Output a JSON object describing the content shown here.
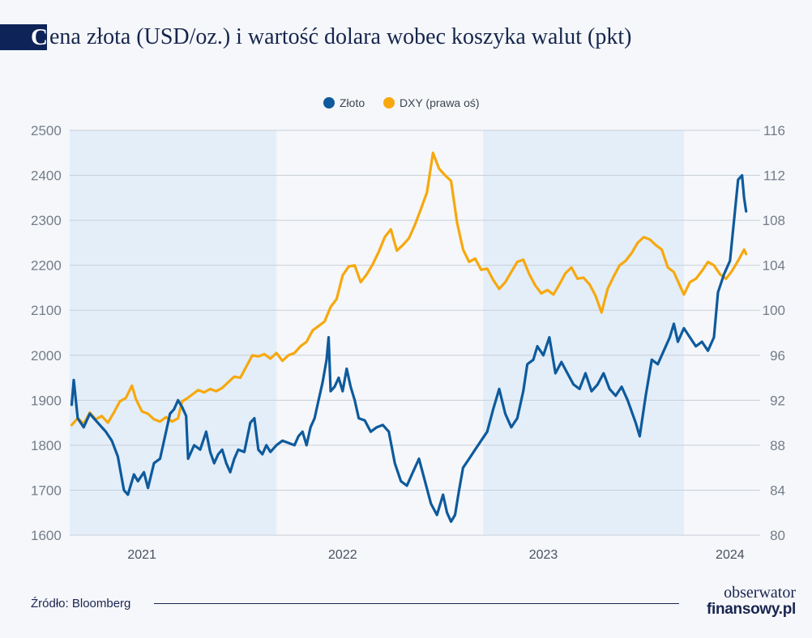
{
  "header": {
    "title_initial": "C",
    "title_rest": "ena złota (USD/oz.) i wartość dolara wobec koszyka walut (pkt)"
  },
  "footer": {
    "source": "Źródło: Bloomberg",
    "logo_top": "obserwator",
    "logo_bottom": "finansowy.pl"
  },
  "colors": {
    "gold": "#0e5a9c",
    "dxy": "#f7a80d",
    "band": "#e3eef9",
    "grid": "#c9cfd8",
    "tick": "#747c88"
  },
  "chart_data": {
    "type": "line",
    "legend": {
      "position": "top-center"
    },
    "x_ticks": [
      "2021",
      "2022",
      "2023",
      "2024"
    ],
    "x_range": [
      2020.88,
      2024.32
    ],
    "shaded_years": [
      [
        2020.88,
        2021.91
      ],
      [
        2022.94,
        2023.94
      ]
    ],
    "y_left": {
      "ticks": [
        1600,
        1700,
        1800,
        1900,
        2000,
        2100,
        2200,
        2300,
        2400,
        2500
      ],
      "range": [
        1600,
        2500
      ]
    },
    "y_right": {
      "ticks": [
        80,
        84,
        88,
        92,
        96,
        100,
        104,
        108,
        112,
        116
      ],
      "range": [
        80,
        116
      ]
    },
    "grid": true,
    "series": [
      {
        "name": "Złoto",
        "axis": "left",
        "points": [
          [
            2020.89,
            1890
          ],
          [
            2020.9,
            1945
          ],
          [
            2020.92,
            1860
          ],
          [
            2020.95,
            1840
          ],
          [
            2020.98,
            1870
          ],
          [
            2021.01,
            1855
          ],
          [
            2021.03,
            1845
          ],
          [
            2021.06,
            1830
          ],
          [
            2021.09,
            1810
          ],
          [
            2021.12,
            1775
          ],
          [
            2021.15,
            1700
          ],
          [
            2021.17,
            1690
          ],
          [
            2021.2,
            1735
          ],
          [
            2021.22,
            1720
          ],
          [
            2021.25,
            1740
          ],
          [
            2021.27,
            1705
          ],
          [
            2021.3,
            1760
          ],
          [
            2021.33,
            1770
          ],
          [
            2021.36,
            1830
          ],
          [
            2021.38,
            1870
          ],
          [
            2021.4,
            1880
          ],
          [
            2021.42,
            1900
          ],
          [
            2021.44,
            1885
          ],
          [
            2021.46,
            1865
          ],
          [
            2021.47,
            1770
          ],
          [
            2021.5,
            1800
          ],
          [
            2021.53,
            1790
          ],
          [
            2021.56,
            1830
          ],
          [
            2021.58,
            1785
          ],
          [
            2021.6,
            1760
          ],
          [
            2021.62,
            1780
          ],
          [
            2021.64,
            1790
          ],
          [
            2021.66,
            1760
          ],
          [
            2021.68,
            1740
          ],
          [
            2021.7,
            1770
          ],
          [
            2021.72,
            1790
          ],
          [
            2021.75,
            1785
          ],
          [
            2021.78,
            1850
          ],
          [
            2021.8,
            1860
          ],
          [
            2021.82,
            1790
          ],
          [
            2021.84,
            1780
          ],
          [
            2021.86,
            1800
          ],
          [
            2021.88,
            1785
          ],
          [
            2021.91,
            1800
          ],
          [
            2021.94,
            1810
          ],
          [
            2022.0,
            1800
          ],
          [
            2022.02,
            1820
          ],
          [
            2022.04,
            1830
          ],
          [
            2022.06,
            1800
          ],
          [
            2022.08,
            1840
          ],
          [
            2022.1,
            1860
          ],
          [
            2022.12,
            1900
          ],
          [
            2022.14,
            1940
          ],
          [
            2022.16,
            1990
          ],
          [
            2022.17,
            2040
          ],
          [
            2022.18,
            1920
          ],
          [
            2022.2,
            1930
          ],
          [
            2022.22,
            1950
          ],
          [
            2022.24,
            1920
          ],
          [
            2022.26,
            1970
          ],
          [
            2022.28,
            1930
          ],
          [
            2022.3,
            1900
          ],
          [
            2022.32,
            1860
          ],
          [
            2022.35,
            1855
          ],
          [
            2022.38,
            1830
          ],
          [
            2022.41,
            1840
          ],
          [
            2022.44,
            1845
          ],
          [
            2022.47,
            1830
          ],
          [
            2022.5,
            1760
          ],
          [
            2022.53,
            1720
          ],
          [
            2022.56,
            1710
          ],
          [
            2022.59,
            1740
          ],
          [
            2022.62,
            1770
          ],
          [
            2022.65,
            1720
          ],
          [
            2022.68,
            1670
          ],
          [
            2022.71,
            1645
          ],
          [
            2022.74,
            1690
          ],
          [
            2022.76,
            1650
          ],
          [
            2022.78,
            1630
          ],
          [
            2022.8,
            1645
          ],
          [
            2022.82,
            1700
          ],
          [
            2022.84,
            1750
          ],
          [
            2022.87,
            1770
          ],
          [
            2022.9,
            1790
          ],
          [
            2022.93,
            1810
          ],
          [
            2022.96,
            1830
          ],
          [
            2022.99,
            1880
          ],
          [
            2023.02,
            1925
          ],
          [
            2023.05,
            1870
          ],
          [
            2023.08,
            1840
          ],
          [
            2023.11,
            1860
          ],
          [
            2023.14,
            1920
          ],
          [
            2023.16,
            1980
          ],
          [
            2023.19,
            1990
          ],
          [
            2023.21,
            2020
          ],
          [
            2023.24,
            2000
          ],
          [
            2023.27,
            2040
          ],
          [
            2023.3,
            1960
          ],
          [
            2023.33,
            1985
          ],
          [
            2023.36,
            1960
          ],
          [
            2023.39,
            1935
          ],
          [
            2023.42,
            1925
          ],
          [
            2023.45,
            1960
          ],
          [
            2023.48,
            1920
          ],
          [
            2023.51,
            1935
          ],
          [
            2023.54,
            1960
          ],
          [
            2023.57,
            1925
          ],
          [
            2023.6,
            1910
          ],
          [
            2023.63,
            1930
          ],
          [
            2023.66,
            1900
          ],
          [
            2023.7,
            1850
          ],
          [
            2023.72,
            1820
          ],
          [
            2023.75,
            1910
          ],
          [
            2023.78,
            1990
          ],
          [
            2023.81,
            1980
          ],
          [
            2023.84,
            2010
          ],
          [
            2023.87,
            2040
          ],
          [
            2023.89,
            2070
          ],
          [
            2023.91,
            2030
          ],
          [
            2023.94,
            2060
          ],
          [
            2023.97,
            2040
          ],
          [
            2024.0,
            2020
          ],
          [
            2024.03,
            2030
          ],
          [
            2024.06,
            2010
          ],
          [
            2024.09,
            2040
          ],
          [
            2024.11,
            2140
          ],
          [
            2024.14,
            2180
          ],
          [
            2024.17,
            2210
          ],
          [
            2024.19,
            2300
          ],
          [
            2024.21,
            2390
          ],
          [
            2024.23,
            2400
          ],
          [
            2024.24,
            2350
          ],
          [
            2024.25,
            2320
          ]
        ]
      },
      {
        "name": "DXY (prawa oś)",
        "axis": "right",
        "points": [
          [
            2020.89,
            89.8
          ],
          [
            2020.92,
            90.4
          ],
          [
            2020.95,
            89.9
          ],
          [
            2020.98,
            90.9
          ],
          [
            2021.01,
            90.3
          ],
          [
            2021.04,
            90.6
          ],
          [
            2021.07,
            90.0
          ],
          [
            2021.1,
            90.9
          ],
          [
            2021.13,
            91.9
          ],
          [
            2021.16,
            92.2
          ],
          [
            2021.19,
            93.3
          ],
          [
            2021.21,
            92.1
          ],
          [
            2021.24,
            91.0
          ],
          [
            2021.27,
            90.8
          ],
          [
            2021.3,
            90.3
          ],
          [
            2021.33,
            90.1
          ],
          [
            2021.36,
            90.5
          ],
          [
            2021.39,
            90.1
          ],
          [
            2021.42,
            90.4
          ],
          [
            2021.44,
            91.9
          ],
          [
            2021.46,
            92.1
          ],
          [
            2021.49,
            92.5
          ],
          [
            2021.52,
            92.9
          ],
          [
            2021.55,
            92.7
          ],
          [
            2021.58,
            93.0
          ],
          [
            2021.61,
            92.8
          ],
          [
            2021.64,
            93.1
          ],
          [
            2021.67,
            93.6
          ],
          [
            2021.7,
            94.1
          ],
          [
            2021.73,
            94.0
          ],
          [
            2021.76,
            95.0
          ],
          [
            2021.79,
            96.0
          ],
          [
            2021.82,
            95.9
          ],
          [
            2021.85,
            96.1
          ],
          [
            2021.88,
            95.7
          ],
          [
            2021.91,
            96.2
          ],
          [
            2021.94,
            95.5
          ],
          [
            2021.97,
            96.0
          ],
          [
            2022.0,
            96.2
          ],
          [
            2022.03,
            96.8
          ],
          [
            2022.06,
            97.2
          ],
          [
            2022.09,
            98.2
          ],
          [
            2022.12,
            98.6
          ],
          [
            2022.15,
            99.0
          ],
          [
            2022.18,
            100.3
          ],
          [
            2022.21,
            101.0
          ],
          [
            2022.24,
            103.1
          ],
          [
            2022.27,
            103.9
          ],
          [
            2022.3,
            104.0
          ],
          [
            2022.33,
            102.5
          ],
          [
            2022.36,
            103.2
          ],
          [
            2022.39,
            104.1
          ],
          [
            2022.42,
            105.2
          ],
          [
            2022.45,
            106.5
          ],
          [
            2022.48,
            107.2
          ],
          [
            2022.51,
            105.3
          ],
          [
            2022.54,
            105.8
          ],
          [
            2022.57,
            106.4
          ],
          [
            2022.6,
            107.6
          ],
          [
            2022.63,
            109.0
          ],
          [
            2022.66,
            110.5
          ],
          [
            2022.69,
            114.0
          ],
          [
            2022.72,
            112.6
          ],
          [
            2022.75,
            112.0
          ],
          [
            2022.78,
            111.5
          ],
          [
            2022.81,
            107.8
          ],
          [
            2022.84,
            105.4
          ],
          [
            2022.87,
            104.3
          ],
          [
            2022.9,
            104.6
          ],
          [
            2022.93,
            103.6
          ],
          [
            2022.96,
            103.7
          ],
          [
            2022.99,
            102.7
          ],
          [
            2023.02,
            101.9
          ],
          [
            2023.05,
            102.5
          ],
          [
            2023.08,
            103.4
          ],
          [
            2023.11,
            104.3
          ],
          [
            2023.14,
            104.5
          ],
          [
            2023.17,
            103.2
          ],
          [
            2023.2,
            102.2
          ],
          [
            2023.23,
            101.5
          ],
          [
            2023.26,
            101.8
          ],
          [
            2023.29,
            101.4
          ],
          [
            2023.32,
            102.3
          ],
          [
            2023.35,
            103.3
          ],
          [
            2023.38,
            103.8
          ],
          [
            2023.41,
            102.8
          ],
          [
            2023.44,
            102.9
          ],
          [
            2023.47,
            102.3
          ],
          [
            2023.5,
            101.3
          ],
          [
            2023.53,
            99.8
          ],
          [
            2023.56,
            101.9
          ],
          [
            2023.59,
            103.0
          ],
          [
            2023.62,
            104.0
          ],
          [
            2023.65,
            104.4
          ],
          [
            2023.68,
            105.1
          ],
          [
            2023.71,
            106.0
          ],
          [
            2023.74,
            106.5
          ],
          [
            2023.77,
            106.3
          ],
          [
            2023.8,
            105.8
          ],
          [
            2023.83,
            105.4
          ],
          [
            2023.86,
            103.8
          ],
          [
            2023.89,
            103.4
          ],
          [
            2023.92,
            102.2
          ],
          [
            2023.94,
            101.4
          ],
          [
            2023.97,
            102.5
          ],
          [
            2024.0,
            102.8
          ],
          [
            2024.03,
            103.5
          ],
          [
            2024.06,
            104.3
          ],
          [
            2024.09,
            104.0
          ],
          [
            2024.12,
            103.2
          ],
          [
            2024.15,
            102.8
          ],
          [
            2024.18,
            103.5
          ],
          [
            2024.21,
            104.4
          ],
          [
            2024.24,
            105.4
          ],
          [
            2024.25,
            105.0
          ]
        ]
      }
    ]
  }
}
